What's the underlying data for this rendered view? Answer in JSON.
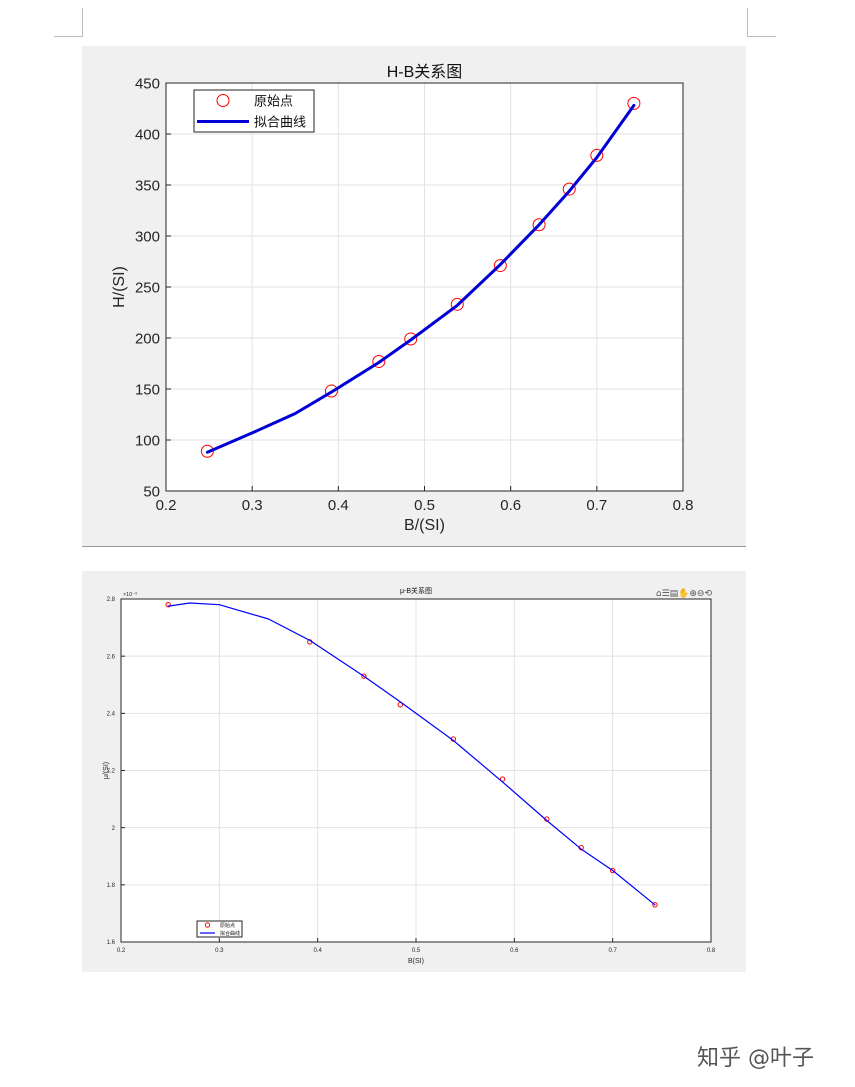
{
  "toolbar_icons": "⌂☰▤✋⊕⊖⟲",
  "watermark": "知乎 @叶子",
  "chart_data": [
    {
      "type": "line",
      "title": "H-B关系图",
      "xlabel": "B/(SI)",
      "ylabel": "H/(SI)",
      "xlim": [
        0.2,
        0.8
      ],
      "ylim": [
        50,
        450
      ],
      "xticks": [
        "0.2",
        "0.3",
        "0.4",
        "0.5",
        "0.6",
        "0.7",
        "0.8"
      ],
      "yticks": [
        "50",
        "100",
        "150",
        "200",
        "250",
        "300",
        "350",
        "400",
        "450"
      ],
      "grid": true,
      "legend_position": "top-left",
      "series": [
        {
          "name": "原始点",
          "style": "markers",
          "color": "#ff0000",
          "x": [
            0.248,
            0.392,
            0.447,
            0.484,
            0.538,
            0.588,
            0.633,
            0.668,
            0.7,
            0.743
          ],
          "y": [
            89,
            148,
            177,
            199,
            233,
            271,
            311,
            346,
            379,
            430
          ]
        },
        {
          "name": "拟合曲线",
          "style": "line",
          "color": "#0000d6",
          "x": [
            0.248,
            0.3,
            0.35,
            0.392,
            0.447,
            0.484,
            0.538,
            0.588,
            0.633,
            0.668,
            0.7,
            0.743
          ],
          "y": [
            88,
            107,
            126,
            147,
            176,
            198,
            232,
            272,
            311,
            344,
            377,
            428
          ]
        }
      ]
    },
    {
      "type": "line",
      "title": "μ-B关系图",
      "xlabel": "B(SI)",
      "ylabel": "μ/(SI)",
      "exponent_label": "×10⁻³",
      "xlim": [
        0.2,
        0.8
      ],
      "ylim": [
        1.6,
        2.8
      ],
      "xticks": [
        "0.2",
        "0.3",
        "0.4",
        "0.5",
        "0.6",
        "0.7",
        "0.8"
      ],
      "yticks": [
        "1.6",
        "1.8",
        "2",
        "2.2",
        "2.4",
        "2.6",
        "2.8"
      ],
      "grid": true,
      "legend_position": "bottom-left",
      "series": [
        {
          "name": "原始点",
          "style": "markers",
          "color": "#ff0000",
          "x": [
            0.248,
            0.392,
            0.447,
            0.484,
            0.538,
            0.588,
            0.633,
            0.668,
            0.7,
            0.743
          ],
          "y": [
            2.78,
            2.65,
            2.53,
            2.43,
            2.31,
            2.17,
            2.03,
            1.93,
            1.85,
            1.73
          ]
        },
        {
          "name": "拟合曲线",
          "style": "line",
          "color": "#0000ff",
          "x": [
            0.248,
            0.27,
            0.3,
            0.35,
            0.392,
            0.447,
            0.484,
            0.538,
            0.588,
            0.633,
            0.668,
            0.7,
            0.743
          ],
          "y": [
            2.775,
            2.786,
            2.78,
            2.73,
            2.655,
            2.53,
            2.44,
            2.305,
            2.16,
            2.025,
            1.925,
            1.85,
            1.73
          ]
        }
      ]
    }
  ]
}
